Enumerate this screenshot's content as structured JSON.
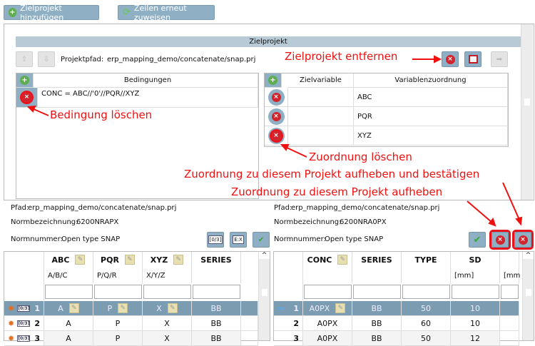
{
  "toolbar": {
    "add_target": "Zielprojekt hinzufügen",
    "reassign": "Zeilen erneut zuweisen"
  },
  "target": {
    "header": "Zielprojekt",
    "path_label": "Projektpfad:",
    "path": "erp_mapping_demo/concatenate/snap.prj",
    "conditions": {
      "header": "Bedingungen",
      "rows": [
        "CONC = ABC//'0'//PQR//XYZ"
      ]
    },
    "mapping": {
      "col_target": "Zielvariable",
      "col_assign": "Variablenzuordnung",
      "rows": [
        {
          "target": "",
          "assign": "ABC"
        },
        {
          "target": "",
          "assign": "PQR"
        },
        {
          "target": "",
          "assign": "XYZ"
        }
      ]
    }
  },
  "annotations": {
    "remove_target": "Zielprojekt entfernen",
    "delete_condition": "Bedingung löschen",
    "delete_mapping": "Zuordnung löschen",
    "unassign_confirm": "Zuordnung zu diesem Projekt aufheben und bestätigen",
    "unassign": "Zuordnung zu diesem Projekt aufheben"
  },
  "left": {
    "path_label": "Pfad:",
    "path": "erp_mapping_demo/concatenate/snap.prj",
    "name_label": "Normbezeichnung:",
    "name": "6200NRAPX",
    "num_label": "Normnummer:",
    "num": "Open type SNAP",
    "columns": [
      {
        "name": "ABC",
        "sub": "A/B/C"
      },
      {
        "name": "PQR",
        "sub": "P/Q/R"
      },
      {
        "name": "XYZ",
        "sub": "X/Y/Z"
      },
      {
        "name": "SERIES",
        "sub": ""
      }
    ],
    "rows": [
      {
        "n": "1",
        "v": [
          "A",
          "P",
          "X",
          "BB"
        ]
      },
      {
        "n": "2",
        "v": [
          "A",
          "P",
          "X",
          "BB"
        ]
      },
      {
        "n": "3",
        "v": [
          "A",
          "P",
          "X",
          "BB"
        ]
      }
    ]
  },
  "right": {
    "path_label": "Pfad:",
    "path": "erp_mapping_demo/concatenate/snap.prj",
    "name_label": "Normbezeichnung:",
    "name": "6200NRA0PX",
    "num_label": "Normnummer:",
    "num": "Open type SNAP",
    "columns": [
      {
        "name": "CONC",
        "sub": ""
      },
      {
        "name": "SERIES",
        "sub": ""
      },
      {
        "name": "TYPE",
        "sub": ""
      },
      {
        "name": "SD",
        "sub": "[mm]"
      },
      {
        "name": "",
        "sub": "[mm"
      }
    ],
    "rows": [
      {
        "n": "1",
        "v": [
          "A0PX",
          "BB",
          "50",
          "10"
        ]
      },
      {
        "n": "2",
        "v": [
          "A0PX",
          "BB",
          "60",
          "10"
        ]
      },
      {
        "n": "3",
        "v": [
          "A0PX",
          "BB",
          "50",
          "12"
        ]
      }
    ]
  },
  "colors": {
    "selected_row": "#7b9cb1",
    "button": "#8fb0c4",
    "annotation": "#f01010"
  }
}
